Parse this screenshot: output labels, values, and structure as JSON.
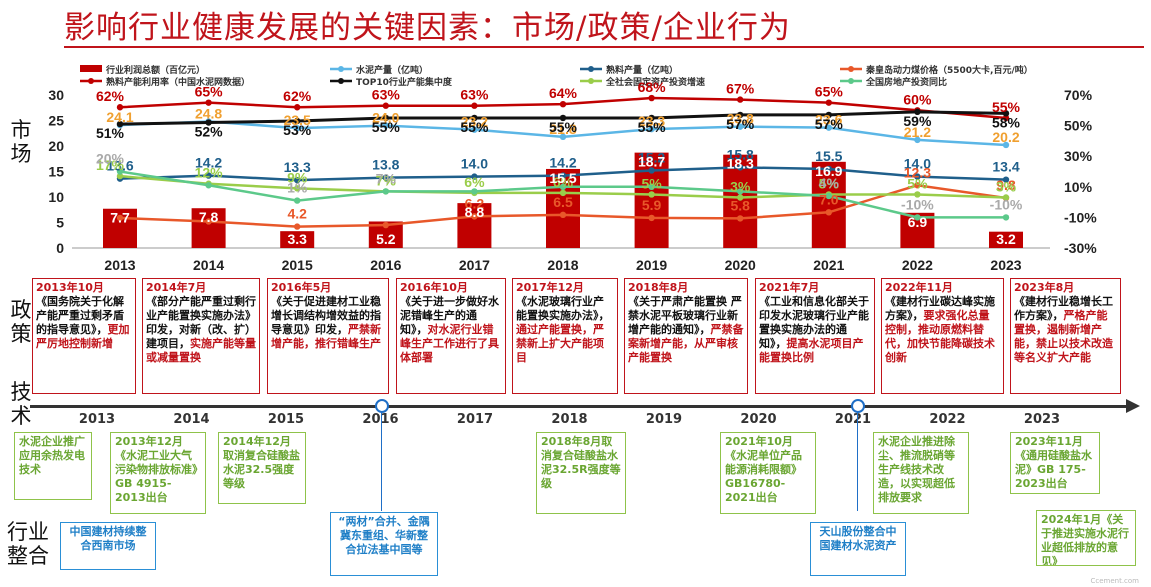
{
  "title": "影响行业健康发展的关键因素：市场/政策/企业行为",
  "side_labels": {
    "market": "市场",
    "policy": "政策",
    "tech": "技术",
    "industry": "行业整合"
  },
  "chart_data": {
    "type": "bar",
    "years": [
      "2013",
      "2014",
      "2015",
      "2016",
      "2017",
      "2018",
      "2019",
      "2020",
      "2021",
      "2022",
      "2023"
    ],
    "left_axis": {
      "ticks": [
        "0",
        "5",
        "10",
        "15",
        "20",
        "25",
        "30"
      ],
      "ylim": [
        0,
        30
      ]
    },
    "right_axis": {
      "ticks": [
        "-30%",
        "-10%",
        "10%",
        "30%",
        "50%",
        "70%"
      ],
      "ylim": [
        -30,
        70
      ]
    },
    "legend": [
      {
        "name": "行业利润总额（百亿元）",
        "color": "#c00000",
        "kind": "bar"
      },
      {
        "name": "水泥产量（亿吨）",
        "color": "#5bb6e6",
        "kind": "line"
      },
      {
        "name": "熟料产量（亿吨）",
        "color": "#1f5f8b",
        "kind": "line"
      },
      {
        "name": "秦皇岛动力煤价格（5500大卡,百元/吨）",
        "color": "#e8582a",
        "kind": "line"
      },
      {
        "name": "熟料产能利用率（中国水泥网数据）",
        "color": "#c00000",
        "kind": "line"
      },
      {
        "name": "TOP10行业产能集中度",
        "color": "#111111",
        "kind": "line"
      },
      {
        "name": "全社会固定资产投资增速",
        "color": "#9acd4a",
        "kind": "line"
      },
      {
        "name": "全国房地产投资同比",
        "color": "#5cc98a",
        "kind": "line"
      }
    ],
    "series": [
      {
        "name": "行业利润总额（百亿元）",
        "axis": "left",
        "type": "bar",
        "color": "#c00000",
        "values": [
          7.7,
          7.8,
          3.3,
          5.2,
          8.8,
          15.5,
          18.7,
          18.3,
          16.9,
          6.9,
          3.2
        ],
        "labels": [
          "7.7",
          "7.8",
          "3.3",
          "5.2",
          "8.8",
          "15.5",
          "18.7",
          "18.3",
          "16.9",
          "6.9",
          "3.2"
        ]
      },
      {
        "name": "水泥产量（亿吨）",
        "axis": "left",
        "type": "line",
        "color": "#5bb6e6",
        "label_color": "#f0a030",
        "values": [
          24.1,
          24.8,
          23.5,
          24.0,
          23.2,
          21.8,
          23.3,
          23.8,
          23.6,
          21.2,
          20.2
        ],
        "labels": [
          "24.1",
          "24.8",
          "23.5",
          "24.0",
          "23.2",
          "21.8",
          "23.3",
          "23.8",
          "23.6",
          "21.2",
          "20.2"
        ]
      },
      {
        "name": "熟料产量（亿吨）",
        "axis": "left",
        "type": "line",
        "color": "#1f5f8b",
        "label_color": "#1f5f8b",
        "values": [
          13.6,
          14.2,
          13.3,
          13.8,
          14.0,
          14.2,
          15.2,
          15.8,
          15.5,
          14.0,
          13.4
        ],
        "labels": [
          "13.6",
          "14.2",
          "13.3",
          "13.8",
          "14.0",
          "14.2",
          "15.2",
          "15.8",
          "15.5",
          "14.0",
          "13.4"
        ]
      },
      {
        "name": "秦皇岛动力煤价格（5500大卡,百元/吨）",
        "axis": "left",
        "type": "line",
        "color": "#e8582a",
        "label_color": "#e8582a",
        "values": [
          5.9,
          5.2,
          4.2,
          4.5,
          6.2,
          6.5,
          5.9,
          5.8,
          7.0,
          12.3,
          9.8
        ],
        "labels": [
          "",
          "",
          "4.2",
          "",
          "6.2",
          "6.5",
          "5.9",
          "5.8",
          "7.0",
          "12.3",
          "9.8"
        ]
      },
      {
        "name": "熟料产能利用率（中国水泥网数据）",
        "axis": "right",
        "type": "line",
        "color": "#c00000",
        "label_color": "#c00000",
        "values": [
          62,
          65,
          62,
          63,
          63,
          64,
          68,
          67,
          65,
          60,
          55
        ],
        "labels": [
          "62%",
          "65%",
          "62%",
          "63%",
          "63%",
          "64%",
          "68%",
          "67%",
          "65%",
          "60%",
          "55%"
        ]
      },
      {
        "name": "TOP10行业产能集中度",
        "axis": "right",
        "type": "line",
        "color": "#111111",
        "label_color": "#111111",
        "values": [
          51,
          52,
          53,
          55,
          55,
          55,
          55,
          57,
          57,
          59,
          58
        ],
        "labels": [
          "51%",
          "52%",
          "53%",
          "55%",
          "55%",
          "55%",
          "55%",
          "57%",
          "57%",
          "59%",
          "58%"
        ]
      },
      {
        "name": "全社会固定资产投资增速",
        "axis": "right",
        "type": "line",
        "color": "#9acd4a",
        "label_color": "#9acd4a",
        "values": [
          17,
          12,
          9,
          7,
          6,
          6,
          5,
          3,
          5,
          5,
          3
        ],
        "labels": [
          "17%",
          "12%",
          "9%",
          "7%",
          "6%",
          "6%",
          "5%",
          "3%",
          "5%",
          "5%",
          "3%"
        ]
      },
      {
        "name": "全国房地产投资同比",
        "axis": "right",
        "type": "line",
        "color": "#5cc98a",
        "label_color": "#aaaaaa",
        "values": [
          20,
          11,
          1,
          7,
          7,
          10,
          10,
          7,
          4,
          -10,
          -10
        ],
        "labels": [
          "20%",
          "",
          "1%",
          "7%",
          "",
          "",
          "",
          "",
          "4%",
          "-10%",
          "-10%"
        ]
      }
    ]
  },
  "policies": [
    {
      "date": "2013年10月",
      "title": "《国务院关于化解产能严重过剩矛盾的指导意见》，",
      "highlight": "更加严厉地控制新增"
    },
    {
      "date": "2014年7月",
      "title": "《部分产能严重过剩行业产能置换实施办法》印发，对新（改、扩）建项目，",
      "highlight": "实施产能等量或减量置换"
    },
    {
      "date": "2016年5月",
      "title": "《关于促进建材工业稳增长调结构增效益的指导意见》印发，",
      "highlight": "严禁新增产能，推行错峰生产"
    },
    {
      "date": "2016年10月",
      "title": "《关于进一步做好水泥错峰生产的通知》，",
      "highlight": "对水泥行业错峰生产工作进行了具体部署"
    },
    {
      "date": "2017年12月",
      "title": "《水泥玻璃行业产能置换实施办法》，",
      "highlight": "通过产能置换，严禁新上扩大产能项目"
    },
    {
      "date": "2018年8月",
      "title": "《关于严肃产能置换 严禁水泥平板玻璃行业新增产能的通知》，",
      "highlight": "严禁备案新增产能，从严审核产能置换"
    },
    {
      "date": "2021年7月",
      "title": "《工业和信息化部关于印发水泥玻璃行业产能置换实施办法的通知》，",
      "highlight": "提高水泥项目产能置换比例"
    },
    {
      "date": "2022年11月",
      "title": "《建材行业碳达峰实施方案》，",
      "highlight": "要求强化总量控制，推动原燃料替代，加快节能降碳技术创新"
    },
    {
      "date": "2023年8月",
      "title": "《建材行业稳增长工作方案》，",
      "highlight": "严格产能置换，遏制新增产能，禁止以技术改造等名义扩大产能"
    }
  ],
  "timeline_years": [
    "2013",
    "2014",
    "2015",
    "2016",
    "2017",
    "2018",
    "2019",
    "2020",
    "2021",
    "2022",
    "2023"
  ],
  "tech": [
    {
      "text": "水泥企业推广应用余热发电技术"
    },
    {
      "text": "2013年12月《水泥工业大气污染物排放标准》GB 4915-2013出台"
    },
    {
      "text": "2014年12月取消复合硅酸盐水泥32.5强度等级"
    },
    {
      "text": "2018年8月取消复合硅酸盐水泥32.5R强度等级"
    },
    {
      "text": "2021年10月《水泥单位产品能源消耗限额》GB16780-2021出台"
    },
    {
      "text": "水泥企业推进除尘、推流脱硝等生产线技术改造，以实现超低排放要求"
    },
    {
      "text": "2023年11月《通用硅酸盐水泥》GB 175-2023出台"
    },
    {
      "text": "2024年1月《关于推进实施水泥行业超低排放的意见》"
    }
  ],
  "industry": [
    {
      "text": "中国建材持续整合西南市场"
    },
    {
      "text": "“两材”合并、金隅冀东重组、华新整合拉法基中国等"
    },
    {
      "text": "天山股份整合中国建材水泥资产"
    }
  ],
  "watermark": "Ccement.com"
}
